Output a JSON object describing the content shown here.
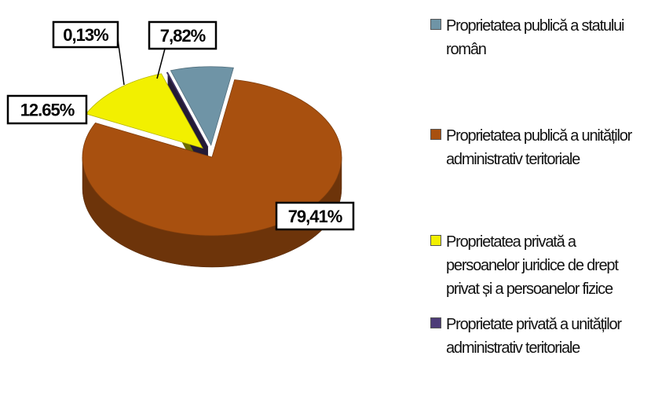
{
  "chart_data": {
    "type": "pie3d",
    "series": [
      {
        "name": "Proprietatea publică a statului român",
        "color": "#6f94a6"
      },
      {
        "name": "Proprietatea publică a unităților administrativ teritoriale",
        "color": "#a8500f"
      },
      {
        "name": "Proprietatea privată a persoanelor juridice de drept privat și a persoanelor fizice",
        "color": "#f2f000"
      },
      {
        "name": "Proprietate privată a unităților administrativ teritoriale",
        "color": "#4d3c78"
      }
    ],
    "values": [
      7.82,
      79.41,
      12.65,
      0.13
    ],
    "value_labels": [
      "7,82%",
      "79,41%",
      "12.65%",
      "0,13%"
    ]
  }
}
